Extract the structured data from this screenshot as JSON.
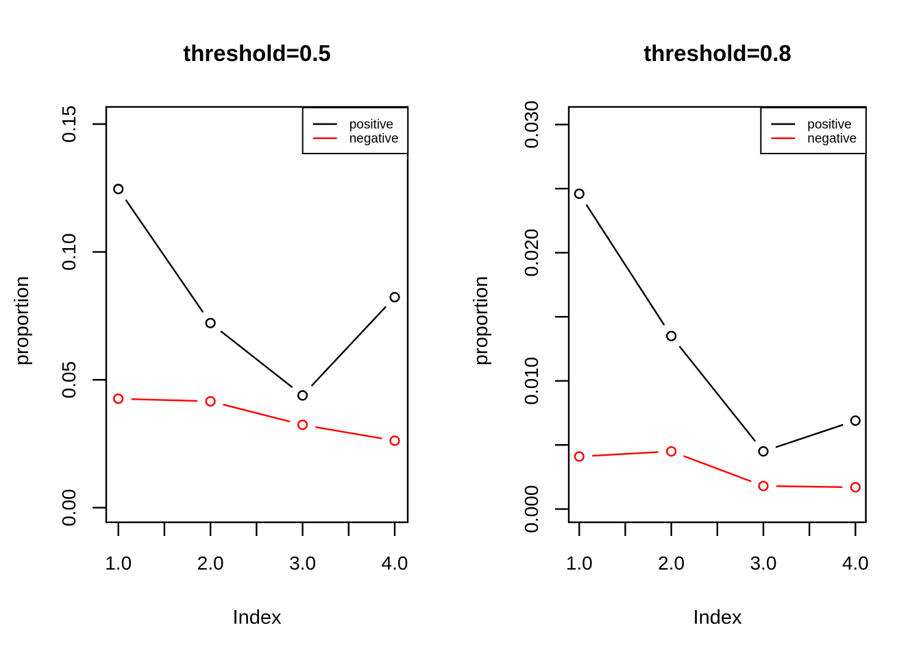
{
  "figure": {
    "background": "#ffffff",
    "accent_colors": {
      "positive": "#000000",
      "negative": "#ff0000"
    }
  },
  "chart_data": [
    {
      "type": "line",
      "title": "threshold=0.5",
      "xlabel": "Index",
      "ylabel": "proportion",
      "x": [
        1.0,
        2.0,
        3.0,
        4.0
      ],
      "series": [
        {
          "name": "positive",
          "color": "#000000",
          "values": [
            0.1246,
            0.0722,
            0.0439,
            0.0823
          ]
        },
        {
          "name": "negative",
          "color": "#ff0000",
          "values": [
            0.0426,
            0.0416,
            0.0324,
            0.0262
          ]
        }
      ],
      "xlim": [
        1.0,
        4.0
      ],
      "ylim": [
        0.0,
        0.15
      ],
      "x_ticks": [
        1.0,
        1.5,
        2.0,
        2.5,
        3.0,
        3.5,
        4.0
      ],
      "x_tick_labels": [
        "1.0",
        "",
        "2.0",
        "",
        "3.0",
        "",
        "4.0"
      ],
      "y_ticks": [
        0.0,
        0.05,
        0.1,
        0.15
      ],
      "y_tick_labels": [
        "0.00",
        "0.05",
        "0.10",
        "0.15"
      ],
      "legend": {
        "position": "topright",
        "entries": [
          "positive",
          "negative"
        ]
      },
      "grid": false,
      "marker": "open-circle"
    },
    {
      "type": "line",
      "title": "threshold=0.8",
      "xlabel": "Index",
      "ylabel": "proportion",
      "x": [
        1.0,
        2.0,
        3.0,
        4.0
      ],
      "series": [
        {
          "name": "positive",
          "color": "#000000",
          "values": [
            0.0246,
            0.0135,
            0.0045,
            0.0069
          ]
        },
        {
          "name": "negative",
          "color": "#ff0000",
          "values": [
            0.0041,
            0.0045,
            0.0018,
            0.0017
          ]
        }
      ],
      "xlim": [
        1.0,
        4.0
      ],
      "ylim": [
        0.0,
        0.03
      ],
      "x_ticks": [
        1.0,
        1.5,
        2.0,
        2.5,
        3.0,
        3.5,
        4.0
      ],
      "x_tick_labels": [
        "1.0",
        "",
        "2.0",
        "",
        "3.0",
        "",
        "4.0"
      ],
      "y_ticks": [
        0.0,
        0.005,
        0.01,
        0.015,
        0.02,
        0.025,
        0.03
      ],
      "y_tick_labels": [
        "0.000",
        "",
        "0.010",
        "",
        "0.020",
        "",
        "0.030"
      ],
      "legend": {
        "position": "topright",
        "entries": [
          "positive",
          "negative"
        ]
      },
      "grid": false,
      "marker": "open-circle"
    }
  ]
}
